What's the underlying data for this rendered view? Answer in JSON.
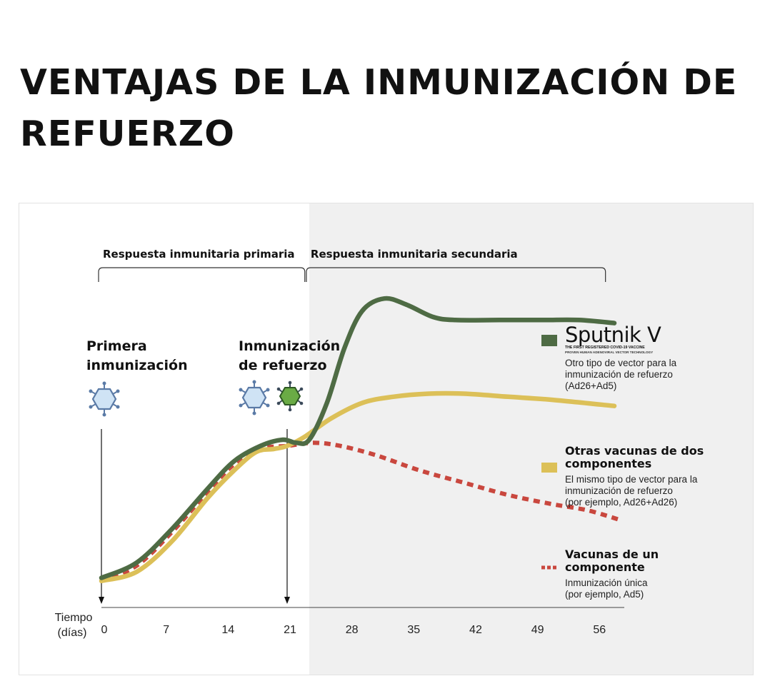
{
  "title": "VENTAJAS DE LA INMUNIZACIÓN DE REFUERZO",
  "phases": {
    "primary": "Respuesta inmunitaria primaria",
    "secondary": "Respuesta inmunitaria secundaria"
  },
  "events": {
    "first": [
      "Primera",
      "inmunización"
    ],
    "booster": [
      "Inmunización",
      "de refuerzo"
    ]
  },
  "colors": {
    "sputnik": "#4e6b44",
    "two_component": "#dcc058",
    "one_component": "#c9473e",
    "shade": "#f0f0f0",
    "virus_blue": "#cfe3f5",
    "virus_green": "#6aab45"
  },
  "legend": {
    "sputnik": {
      "brand": "Sputnik V",
      "tagline1": "THE FIRST REGISTERED COVID-19 VACCINE",
      "tagline2": "PROVEN HUMAN ADENOVIRAL VECTOR TECHNOLOGY",
      "desc": [
        "Otro tipo de vector para la",
        "inmunización de refuerzo",
        "(Ad26+Ad5)"
      ]
    },
    "two": {
      "title": [
        "Otras vacunas de dos",
        "componentes"
      ],
      "desc": [
        "El mismo tipo de vector para la",
        "inmunización de refuerzo",
        "(por ejemplo, Ad26+Ad26)"
      ]
    },
    "one": {
      "title": [
        "Vacunas de un",
        "componente"
      ],
      "desc": [
        "Inmunización única",
        "(por ejemplo, Ad5)"
      ]
    }
  },
  "chart_data": {
    "type": "line",
    "title": "VENTAJAS DE LA INMUNIZACIÓN DE REFUERZO",
    "xlabel": "Tiempo (días)",
    "ylabel": "",
    "xlim": [
      0,
      60
    ],
    "ylim": [
      0,
      100
    ],
    "x_ticks": [
      0,
      7,
      14,
      21,
      28,
      35,
      42,
      49,
      56
    ],
    "shaded_from": 23.5,
    "phases": [
      {
        "label": "Respuesta inmunitaria primaria",
        "from": 0,
        "to": 23
      },
      {
        "label": "Respuesta inmunitaria secundaria",
        "from": 23.5,
        "to": 57
      }
    ],
    "events": [
      {
        "label": "Primera inmunización",
        "x": 0
      },
      {
        "label": "Inmunización de refuerzo",
        "x": 21
      }
    ],
    "series": [
      {
        "name": "Sputnik V",
        "style": "solid",
        "points": [
          [
            0,
            5
          ],
          [
            4,
            10
          ],
          [
            8,
            21
          ],
          [
            12,
            34
          ],
          [
            15,
            43
          ],
          [
            18,
            48
          ],
          [
            20.5,
            50
          ],
          [
            22,
            49
          ],
          [
            23.5,
            50
          ],
          [
            25.5,
            62
          ],
          [
            27.5,
            80
          ],
          [
            29.5,
            92
          ],
          [
            32,
            96
          ],
          [
            34.5,
            94
          ],
          [
            37.5,
            90
          ],
          [
            40,
            89
          ],
          [
            45,
            89
          ],
          [
            50,
            89
          ],
          [
            54,
            89
          ],
          [
            58,
            88
          ]
        ]
      },
      {
        "name": "Otras vacunas de dos componentes",
        "style": "solid",
        "points": [
          [
            0,
            4
          ],
          [
            4,
            7
          ],
          [
            8,
            17
          ],
          [
            12,
            31
          ],
          [
            15,
            40
          ],
          [
            17.5,
            46
          ],
          [
            19.5,
            47
          ],
          [
            21,
            48
          ],
          [
            23,
            51
          ],
          [
            26,
            57
          ],
          [
            29.5,
            62
          ],
          [
            33,
            64
          ],
          [
            37,
            65
          ],
          [
            41,
            65
          ],
          [
            46,
            64
          ],
          [
            51,
            63
          ],
          [
            58,
            61
          ]
        ]
      },
      {
        "name": "Vacunas de un componente",
        "style": "dashed",
        "points": [
          [
            0,
            4
          ],
          [
            4,
            9
          ],
          [
            8,
            20
          ],
          [
            12,
            33
          ],
          [
            15,
            42
          ],
          [
            18,
            47
          ],
          [
            21,
            48
          ],
          [
            24,
            49
          ],
          [
            27,
            48
          ],
          [
            31,
            45
          ],
          [
            36,
            40
          ],
          [
            41,
            36
          ],
          [
            46,
            32
          ],
          [
            51,
            29
          ],
          [
            55,
            27
          ],
          [
            58.5,
            24
          ]
        ]
      }
    ]
  }
}
